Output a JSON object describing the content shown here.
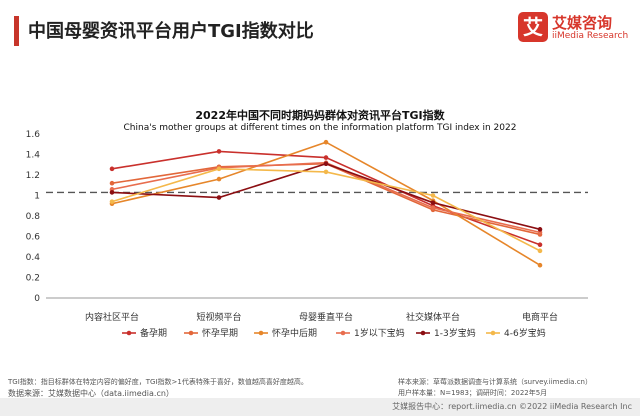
{
  "header": {
    "title": "中国母婴资讯平台用户TGI指数对比",
    "logo_mark": "艾",
    "logo_cn": "艾媒咨询",
    "logo_en": "iiMedia Research"
  },
  "colors": {
    "accent": "#c7352a",
    "series": [
      "#c9302c",
      "#e2673a",
      "#e6862a",
      "#e86d4e",
      "#8b0e12",
      "#f4b84a"
    ]
  },
  "chart_data": {
    "type": "line",
    "title": "2022年中国不同时期妈妈群体对资讯平台TGI指数",
    "subtitle": "China's mother groups at different times on the information platform TGI index in 2022",
    "categories": [
      "内容社区平台",
      "短视频平台",
      "母婴垂直平台",
      "社交媒体平台",
      "电商平台"
    ],
    "ylim": [
      0,
      1.6
    ],
    "yticks": [
      "0",
      "0.2",
      "0.4",
      "0.6",
      "0.8",
      "1",
      "1.2",
      "1.4",
      "1.6"
    ],
    "reference_line": 1.03,
    "legend_position": "bottom",
    "grid": false,
    "series": [
      {
        "name": "备孕期",
        "values": [
          1.26,
          1.43,
          1.37,
          0.9,
          0.52
        ]
      },
      {
        "name": "怀孕早期",
        "values": [
          1.12,
          1.28,
          1.31,
          0.86,
          0.62
        ]
      },
      {
        "name": "怀孕中后期",
        "values": [
          0.92,
          1.16,
          1.52,
          0.95,
          0.32
        ]
      },
      {
        "name": "1岁以下宝妈",
        "values": [
          1.06,
          1.27,
          1.32,
          0.88,
          0.64
        ]
      },
      {
        "name": "1-3岁宝妈",
        "values": [
          1.03,
          0.98,
          1.31,
          0.93,
          0.67
        ]
      },
      {
        "name": "4-6岁宝妈",
        "values": [
          0.94,
          1.26,
          1.23,
          1.0,
          0.46
        ]
      }
    ]
  },
  "footnotes": {
    "definition": "TGI指数：指目标群体在特定内容的偏好度，TGI指数>1代表特殊于喜好，数值越高喜好度越高。",
    "source": "数据来源：艾媒数据中心（data.iimedia.cn）",
    "sample_source": "样本来源：草莓派数据调查与计算系统（survey.iimedia.cn）",
    "sample_info": "用户样本量：N=1983；调研时间：2022年5月"
  },
  "footer": {
    "text": "艾媒报告中心：report.iimedia.cn  ©2022  iiMedia Research  Inc"
  }
}
